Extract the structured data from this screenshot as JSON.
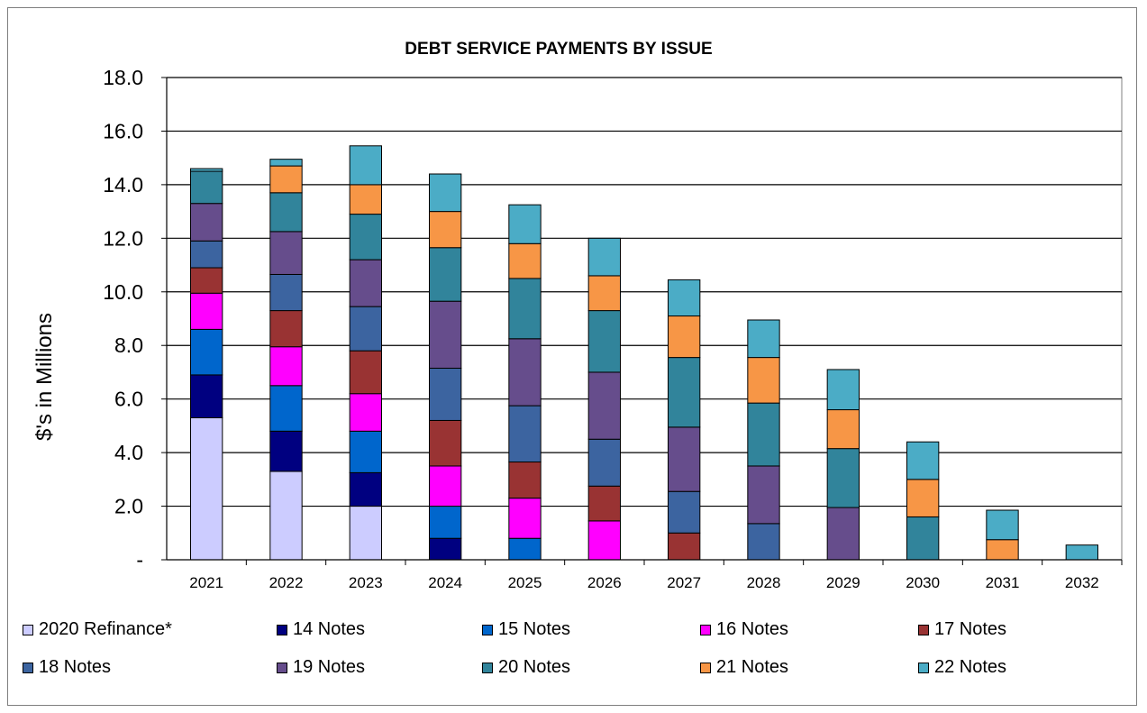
{
  "chart_data": {
    "type": "bar",
    "stacked": true,
    "title": "DEBT SERVICE PAYMENTS BY ISSUE",
    "ylabel": "$'s in Millions",
    "xlabel": "",
    "ylim": [
      0,
      18
    ],
    "yticks": [
      "-",
      "2.0",
      "4.0",
      "6.0",
      "8.0",
      "10.0",
      "12.0",
      "14.0",
      "16.0",
      "18.0"
    ],
    "grid": true,
    "legend_position": "bottom",
    "categories": [
      "2021",
      "2022",
      "2023",
      "2024",
      "2025",
      "2026",
      "2027",
      "2028",
      "2029",
      "2030",
      "2031",
      "2032"
    ],
    "series": [
      {
        "name": "2020 Refinance*",
        "color": "#ccccff",
        "values": [
          5.3,
          3.3,
          2.0,
          0,
          0,
          0,
          0,
          0,
          0,
          0,
          0,
          0
        ]
      },
      {
        "name": "14 Notes",
        "color": "#000080",
        "values": [
          1.6,
          1.5,
          1.25,
          0.8,
          0,
          0,
          0,
          0,
          0,
          0,
          0,
          0
        ]
      },
      {
        "name": "15 Notes",
        "color": "#0066cc",
        "values": [
          1.7,
          1.7,
          1.55,
          1.2,
          0.8,
          0,
          0,
          0,
          0,
          0,
          0,
          0
        ]
      },
      {
        "name": "16 Notes",
        "color": "#ff00ff",
        "values": [
          1.35,
          1.45,
          1.4,
          1.5,
          1.5,
          1.45,
          0,
          0,
          0,
          0,
          0,
          0
        ]
      },
      {
        "name": "17 Notes",
        "color": "#993333",
        "values": [
          0.95,
          1.35,
          1.6,
          1.7,
          1.35,
          1.3,
          1.0,
          0,
          0,
          0,
          0,
          0
        ]
      },
      {
        "name": "18 Notes",
        "color": "#3c64a0",
        "values": [
          1.0,
          1.35,
          1.65,
          1.95,
          2.1,
          1.75,
          1.55,
          1.35,
          0,
          0,
          0,
          0
        ]
      },
      {
        "name": "19 Notes",
        "color": "#664d8c",
        "values": [
          1.4,
          1.6,
          1.75,
          2.5,
          2.5,
          2.5,
          2.4,
          2.15,
          1.95,
          0,
          0,
          0
        ]
      },
      {
        "name": "20 Notes",
        "color": "#31849b",
        "values": [
          1.2,
          1.45,
          1.7,
          2.0,
          2.25,
          2.3,
          2.6,
          2.35,
          2.2,
          1.6,
          0,
          0
        ]
      },
      {
        "name": "21 Notes",
        "color": "#f79646",
        "values": [
          0,
          1.0,
          1.1,
          1.35,
          1.3,
          1.3,
          1.55,
          1.7,
          1.45,
          1.4,
          0.75,
          0
        ]
      },
      {
        "name": "22 Notes",
        "color": "#4bacc6",
        "values": [
          0.1,
          0.25,
          1.45,
          1.4,
          1.45,
          1.4,
          1.35,
          1.4,
          1.5,
          1.4,
          1.1,
          0.55
        ]
      }
    ]
  }
}
